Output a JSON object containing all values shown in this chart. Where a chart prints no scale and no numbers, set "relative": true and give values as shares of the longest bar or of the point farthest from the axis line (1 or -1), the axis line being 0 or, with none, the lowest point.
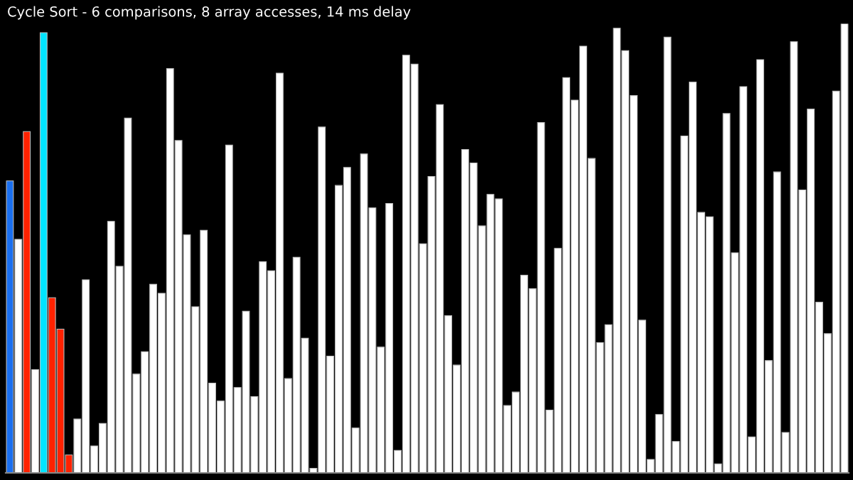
{
  "chart_data": {
    "type": "bar",
    "title": "Cycle Sort - 6 comparisons, 8 array accesses, 14 ms delay",
    "relative": true,
    "categories": [
      null,
      null,
      null,
      null,
      null,
      null,
      null,
      null,
      null,
      null,
      null,
      null,
      null,
      null,
      null,
      null,
      null,
      null,
      null,
      null,
      null,
      null,
      null,
      null,
      null,
      null,
      null,
      null,
      null,
      null,
      null,
      null,
      null,
      null,
      null,
      null,
      null,
      null,
      null,
      null,
      null,
      null,
      null,
      null,
      null,
      null,
      null,
      null,
      null,
      null,
      null,
      null,
      null,
      null,
      null,
      null,
      null,
      null,
      null,
      null,
      null,
      null,
      null,
      null,
      null,
      null,
      null,
      null,
      null,
      null,
      null,
      null,
      null,
      null,
      null,
      null,
      null,
      null,
      null,
      null,
      null,
      null,
      null,
      null,
      null,
      null,
      null,
      null,
      null,
      null,
      null,
      null,
      null,
      null,
      null,
      null,
      null,
      null,
      null,
      null
    ],
    "values": [
      0.65,
      0.52,
      0.76,
      0.23,
      0.98,
      0.39,
      0.32,
      0.04,
      0.12,
      0.43,
      0.06,
      0.11,
      0.56,
      0.46,
      0.79,
      0.22,
      0.27,
      0.42,
      0.4,
      0.9,
      0.74,
      0.53,
      0.37,
      0.54,
      0.2,
      0.16,
      0.73,
      0.19,
      0.36,
      0.17,
      0.47,
      0.45,
      0.89,
      0.21,
      0.48,
      0.3,
      0.01,
      0.77,
      0.26,
      0.64,
      0.68,
      0.1,
      0.71,
      0.59,
      0.28,
      0.6,
      0.05,
      0.93,
      0.91,
      0.51,
      0.66,
      0.82,
      0.35,
      0.24,
      0.72,
      0.69,
      0.55,
      0.62,
      0.61,
      0.15,
      0.18,
      0.44,
      0.41,
      0.78,
      0.14,
      0.5,
      0.88,
      0.83,
      0.95,
      0.7,
      0.29,
      0.33,
      0.99,
      0.94,
      0.84,
      0.34,
      0.03,
      0.13,
      0.97,
      0.07,
      0.75,
      0.87,
      0.58,
      0.57,
      0.02,
      0.8,
      0.49,
      0.86,
      0.08,
      0.92,
      0.25,
      0.67,
      0.09,
      0.96,
      0.63,
      0.81,
      0.38,
      0.31,
      0.85,
      1.0
    ],
    "colors": [
      "#1a6ff0",
      "#ffffff",
      "#ff2200",
      "#ffffff",
      "#00e5ff",
      "#ff2200",
      "#ff2200",
      "#ff2200",
      "#ffffff",
      "#ffffff",
      "#ffffff",
      "#ffffff",
      "#ffffff",
      "#ffffff",
      "#ffffff",
      "#ffffff",
      "#ffffff",
      "#ffffff",
      "#ffffff",
      "#ffffff",
      "#ffffff",
      "#ffffff",
      "#ffffff",
      "#ffffff",
      "#ffffff",
      "#ffffff",
      "#ffffff",
      "#ffffff",
      "#ffffff",
      "#ffffff",
      "#ffffff",
      "#ffffff",
      "#ffffff",
      "#ffffff",
      "#ffffff",
      "#ffffff",
      "#ffffff",
      "#ffffff",
      "#ffffff",
      "#ffffff",
      "#ffffff",
      "#ffffff",
      "#ffffff",
      "#ffffff",
      "#ffffff",
      "#ffffff",
      "#ffffff",
      "#ffffff",
      "#ffffff",
      "#ffffff",
      "#ffffff",
      "#ffffff",
      "#ffffff",
      "#ffffff",
      "#ffffff",
      "#ffffff",
      "#ffffff",
      "#ffffff",
      "#ffffff",
      "#ffffff",
      "#ffffff",
      "#ffffff",
      "#ffffff",
      "#ffffff",
      "#ffffff",
      "#ffffff",
      "#ffffff",
      "#ffffff",
      "#ffffff",
      "#ffffff",
      "#ffffff",
      "#ffffff",
      "#ffffff",
      "#ffffff",
      "#ffffff",
      "#ffffff",
      "#ffffff",
      "#ffffff",
      "#ffffff",
      "#ffffff",
      "#ffffff",
      "#ffffff",
      "#ffffff",
      "#ffffff",
      "#ffffff",
      "#ffffff",
      "#ffffff",
      "#ffffff",
      "#ffffff",
      "#ffffff",
      "#ffffff",
      "#ffffff",
      "#ffffff",
      "#ffffff",
      "#ffffff",
      "#ffffff",
      "#ffffff",
      "#ffffff",
      "#ffffff",
      "#ffffff"
    ],
    "grid": false,
    "legend": false
  }
}
